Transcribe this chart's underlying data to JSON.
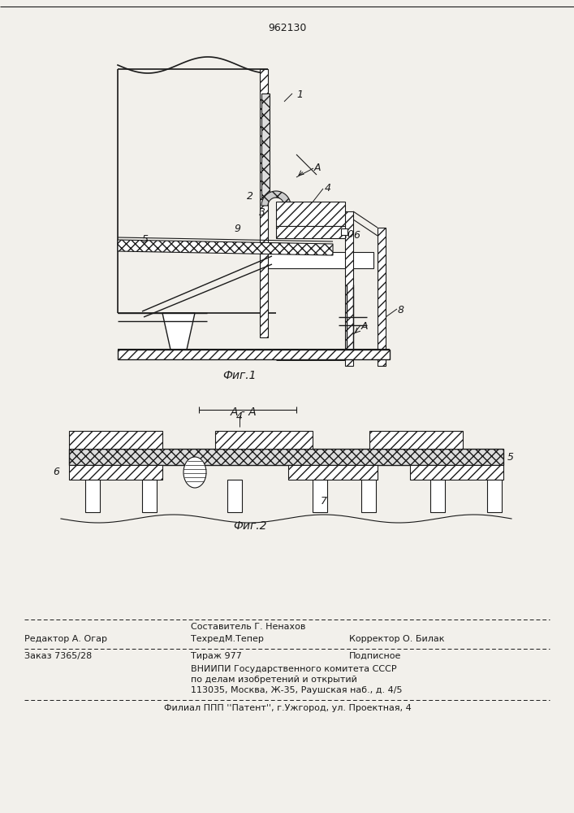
{
  "patent_number": "962130",
  "fig1_caption": "Фиг.1",
  "fig2_caption": "Фиг.2",
  "section_label": "A - A",
  "bg_color": "#f2f0eb",
  "line_color": "#1a1a1a",
  "footer": {
    "editor": "Редактор А. Огар",
    "composer": "Составитель Г. Ненахов",
    "techred": "ТехредМ.Тепер",
    "corrector": "Корректор О. Билак",
    "order": "Заказ 7365/28",
    "tirazh": "Тираж 977",
    "podpisnoe": "Подписное",
    "vniip1": "ВНИИПИ Государственного комитета СССР",
    "vniip2": "по делам изобретений и открытий",
    "vniip3": "113035, Москва, Ж-35, Раушская наб., д. 4/5",
    "filial": "Филиал ППП ''Патент'', г.Ужгород, ул. Проектная, 4"
  }
}
